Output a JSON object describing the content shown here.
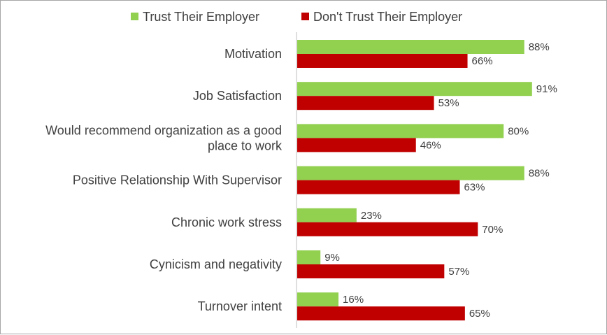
{
  "chart_data": {
    "type": "bar",
    "orientation": "horizontal",
    "categories": [
      [
        "Motivation"
      ],
      [
        "Job Satisfaction"
      ],
      [
        "Would recommend organization as a good",
        "place to work"
      ],
      [
        "Positive Relationship With Supervisor"
      ],
      [
        "Chronic work stress"
      ],
      [
        "Cynicism and negativity"
      ],
      [
        "Turnover intent"
      ]
    ],
    "series": [
      {
        "name": "Trust Their Employer",
        "color": "#92d050",
        "values": [
          88,
          91,
          80,
          88,
          23,
          9,
          16
        ],
        "labels": [
          "88%",
          "91%",
          "80%",
          "88%",
          "23%",
          "9%",
          "16%"
        ]
      },
      {
        "name": "Don't Trust Their Employer",
        "color": "#c00000",
        "values": [
          66,
          53,
          46,
          63,
          70,
          57,
          65
        ],
        "labels": [
          "66%",
          "53%",
          "46%",
          "63%",
          "70%",
          "57%",
          "65%"
        ]
      }
    ],
    "xlim": [
      0,
      100
    ],
    "grid": false,
    "legend_position": "top"
  }
}
